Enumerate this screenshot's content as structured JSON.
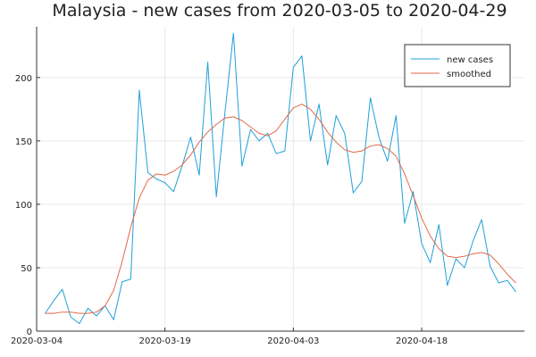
{
  "chart_data": {
    "type": "line",
    "title": "Malaysia - new cases from 2020-03-05 to 2020-04-29",
    "xlabel": "",
    "ylabel": "",
    "x_ticks": [
      "2020-03-04",
      "2020-03-19",
      "2020-04-03",
      "2020-04-18"
    ],
    "y_ticks": [
      0,
      50,
      100,
      150,
      200
    ],
    "xlim": [
      "2020-03-04",
      "2020-04-30"
    ],
    "ylim": [
      0,
      240
    ],
    "grid": true,
    "legend_position": "top-right",
    "colors": {
      "new_cases": "#1fa0d8",
      "smoothed": "#e2694a",
      "axis": "#333333",
      "grid": "#e9e9e9"
    },
    "series": [
      {
        "name": "new cases",
        "x": [
          "2020-03-05",
          "2020-03-06",
          "2020-03-07",
          "2020-03-08",
          "2020-03-09",
          "2020-03-10",
          "2020-03-11",
          "2020-03-12",
          "2020-03-13",
          "2020-03-14",
          "2020-03-15",
          "2020-03-16",
          "2020-03-17",
          "2020-03-18",
          "2020-03-19",
          "2020-03-20",
          "2020-03-21",
          "2020-03-22",
          "2020-03-23",
          "2020-03-24",
          "2020-03-25",
          "2020-03-26",
          "2020-03-27",
          "2020-03-28",
          "2020-03-29",
          "2020-03-30",
          "2020-03-31",
          "2020-04-01",
          "2020-04-02",
          "2020-04-03",
          "2020-04-04",
          "2020-04-05",
          "2020-04-06",
          "2020-04-07",
          "2020-04-08",
          "2020-04-09",
          "2020-04-10",
          "2020-04-11",
          "2020-04-12",
          "2020-04-13",
          "2020-04-14",
          "2020-04-15",
          "2020-04-16",
          "2020-04-17",
          "2020-04-18",
          "2020-04-19",
          "2020-04-20",
          "2020-04-21",
          "2020-04-22",
          "2020-04-23",
          "2020-04-24",
          "2020-04-25",
          "2020-04-26",
          "2020-04-27",
          "2020-04-28",
          "2020-04-29"
        ],
        "values": [
          14,
          24,
          33,
          11,
          6,
          18,
          12,
          20,
          9,
          39,
          41,
          190,
          125,
          120,
          117,
          110,
          130,
          153,
          123,
          212,
          106,
          172,
          235,
          130,
          159,
          150,
          156,
          140,
          142,
          208,
          217,
          150,
          179,
          131,
          170,
          156,
          109,
          118,
          184,
          153,
          134,
          170,
          85,
          110,
          69,
          54,
          84,
          36,
          57,
          50,
          71,
          88,
          51,
          38,
          40,
          31
        ]
      },
      {
        "name": "smoothed",
        "x": [
          "2020-03-05",
          "2020-03-06",
          "2020-03-07",
          "2020-03-08",
          "2020-03-09",
          "2020-03-10",
          "2020-03-11",
          "2020-03-12",
          "2020-03-13",
          "2020-03-14",
          "2020-03-15",
          "2020-03-16",
          "2020-03-17",
          "2020-03-18",
          "2020-03-19",
          "2020-03-20",
          "2020-03-21",
          "2020-03-22",
          "2020-03-23",
          "2020-03-24",
          "2020-03-25",
          "2020-03-26",
          "2020-03-27",
          "2020-03-28",
          "2020-03-29",
          "2020-03-30",
          "2020-03-31",
          "2020-04-01",
          "2020-04-02",
          "2020-04-03",
          "2020-04-04",
          "2020-04-05",
          "2020-04-06",
          "2020-04-07",
          "2020-04-08",
          "2020-04-09",
          "2020-04-10",
          "2020-04-11",
          "2020-04-12",
          "2020-04-13",
          "2020-04-14",
          "2020-04-15",
          "2020-04-16",
          "2020-04-17",
          "2020-04-18",
          "2020-04-19",
          "2020-04-20",
          "2020-04-21",
          "2020-04-22",
          "2020-04-23",
          "2020-04-24",
          "2020-04-25",
          "2020-04-26",
          "2020-04-27",
          "2020-04-28",
          "2020-04-29"
        ],
        "values": [
          14,
          14,
          15,
          15,
          14,
          14,
          15,
          20,
          32,
          55,
          82,
          105,
          119,
          124,
          123,
          126,
          131,
          139,
          149,
          157,
          163,
          168,
          169,
          166,
          161,
          156,
          154,
          158,
          167,
          176,
          179,
          175,
          167,
          157,
          149,
          143,
          141,
          142,
          146,
          147,
          144,
          138,
          124,
          107,
          89,
          75,
          65,
          59,
          58,
          59,
          61,
          62,
          60,
          53,
          45,
          38
        ]
      }
    ]
  }
}
